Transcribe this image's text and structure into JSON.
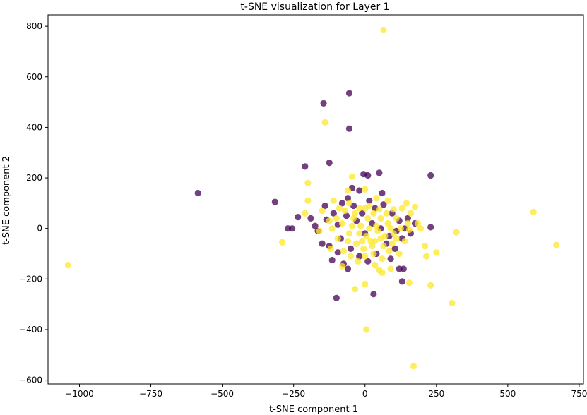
{
  "chart_data": {
    "type": "scatter",
    "title": "t-SNE visualization for Layer 1",
    "xlabel": "t-SNE component 1",
    "ylabel": "t-SNE component 2",
    "xlim": [
      -1110,
      765
    ],
    "ylim": [
      -615,
      845
    ],
    "xticks": [
      -1000,
      -750,
      -500,
      -250,
      0,
      250,
      500,
      750
    ],
    "xtick_labels": [
      "−1000",
      "−750",
      "−500",
      "−250",
      "0",
      "250",
      "500",
      "750"
    ],
    "yticks": [
      -600,
      -400,
      -200,
      0,
      200,
      400,
      600,
      800
    ],
    "ytick_labels": [
      "−600",
      "−400",
      "−200",
      "0",
      "200",
      "400",
      "600",
      "800"
    ],
    "grid": false,
    "legend": "none",
    "colors": {
      "class_0": "#440154",
      "class_1": "#fde725"
    },
    "series": [
      {
        "color": "#440154",
        "points": [
          [
            -585,
            140
          ],
          [
            -315,
            105
          ],
          [
            -270,
            0
          ],
          [
            -255,
            0
          ],
          [
            -235,
            45
          ],
          [
            -210,
            245
          ],
          [
            -145,
            495
          ],
          [
            -125,
            260
          ],
          [
            -55,
            535
          ],
          [
            -55,
            395
          ],
          [
            -5,
            215
          ],
          [
            10,
            210
          ],
          [
            50,
            220
          ],
          [
            60,
            140
          ],
          [
            230,
            210
          ],
          [
            230,
            5
          ],
          [
            -95,
            15
          ],
          [
            -80,
            100
          ],
          [
            -60,
            120
          ],
          [
            -40,
            90
          ],
          [
            -20,
            150
          ],
          [
            -10,
            60
          ],
          [
            15,
            110
          ],
          [
            35,
            80
          ],
          [
            65,
            95
          ],
          [
            95,
            60
          ],
          [
            120,
            30
          ],
          [
            140,
            0
          ],
          [
            130,
            -40
          ],
          [
            105,
            -80
          ],
          [
            90,
            -120
          ],
          [
            120,
            -160
          ],
          [
            135,
            -160
          ],
          [
            130,
            -210
          ],
          [
            30,
            -260
          ],
          [
            -100,
            -275
          ],
          [
            -75,
            -140
          ],
          [
            -60,
            -160
          ],
          [
            -115,
            -125
          ],
          [
            -150,
            -60
          ],
          [
            -175,
            10
          ],
          [
            -190,
            40
          ],
          [
            -165,
            -10
          ],
          [
            -135,
            35
          ],
          [
            -110,
            60
          ],
          [
            -85,
            -40
          ],
          [
            -50,
            -80
          ],
          [
            -20,
            -110
          ],
          [
            10,
            -130
          ],
          [
            40,
            -100
          ],
          [
            75,
            -60
          ],
          [
            110,
            -10
          ],
          [
            150,
            40
          ],
          [
            175,
            20
          ],
          [
            160,
            -20
          ],
          [
            -125,
            -70
          ],
          [
            -95,
            -95
          ],
          [
            -30,
            30
          ],
          [
            0,
            -20
          ],
          [
            25,
            20
          ],
          [
            55,
            0
          ],
          [
            85,
            -30
          ],
          [
            -65,
            50
          ],
          [
            -140,
            90
          ],
          [
            -45,
            160
          ]
        ]
      },
      {
        "color": "#fde725",
        "points": [
          [
            65,
            785
          ],
          [
            -140,
            420
          ],
          [
            -45,
            205
          ],
          [
            -200,
            180
          ],
          [
            -290,
            -55
          ],
          [
            -1040,
            -145
          ],
          [
            590,
            65
          ],
          [
            670,
            -65
          ],
          [
            320,
            -15
          ],
          [
            305,
            -295
          ],
          [
            250,
            -95
          ],
          [
            230,
            -225
          ],
          [
            215,
            -110
          ],
          [
            210,
            -70
          ],
          [
            195,
            0
          ],
          [
            185,
            20
          ],
          [
            175,
            85
          ],
          [
            155,
            -215
          ],
          [
            90,
            -160
          ],
          [
            60,
            -175
          ],
          [
            50,
            -165
          ],
          [
            35,
            -145
          ],
          [
            0,
            -220
          ],
          [
            5,
            -400
          ],
          [
            170,
            -545
          ],
          [
            -35,
            -240
          ],
          [
            -80,
            -150
          ],
          [
            -120,
            -80
          ],
          [
            -160,
            -10
          ],
          [
            -200,
            110
          ],
          [
            -210,
            60
          ],
          [
            -150,
            70
          ],
          [
            -110,
            110
          ],
          [
            -60,
            150
          ],
          [
            0,
            155
          ],
          [
            40,
            120
          ],
          [
            80,
            110
          ],
          [
            100,
            75
          ],
          [
            130,
            80
          ],
          [
            145,
            100
          ],
          [
            160,
            60
          ],
          [
            155,
            -5
          ],
          [
            140,
            -50
          ],
          [
            120,
            -100
          ],
          [
            95,
            -60
          ],
          [
            70,
            -30
          ],
          [
            45,
            -10
          ],
          [
            20,
            -50
          ],
          [
            -5,
            -80
          ],
          [
            -30,
            -60
          ],
          [
            -55,
            -20
          ],
          [
            -80,
            20
          ],
          [
            -100,
            40
          ],
          [
            -70,
            70
          ],
          [
            -40,
            40
          ],
          [
            -15,
            10
          ],
          [
            10,
            40
          ],
          [
            30,
            60
          ],
          [
            55,
            40
          ],
          [
            80,
            20
          ],
          [
            100,
            -20
          ],
          [
            85,
            -90
          ],
          [
            60,
            -120
          ],
          [
            30,
            -100
          ],
          [
            0,
            -110
          ],
          [
            -25,
            -130
          ],
          [
            -50,
            -110
          ],
          [
            -75,
            -90
          ],
          [
            -95,
            -40
          ],
          [
            -115,
            0
          ],
          [
            -90,
            80
          ],
          [
            -55,
            100
          ],
          [
            -20,
            80
          ],
          [
            15,
            90
          ],
          [
            50,
            75
          ],
          [
            75,
            60
          ],
          [
            110,
            40
          ],
          [
            125,
            0
          ],
          [
            110,
            -40
          ],
          [
            65,
            -70
          ],
          [
            35,
            -50
          ],
          [
            5,
            -30
          ],
          [
            -20,
            -20
          ],
          [
            -45,
            10
          ],
          [
            -60,
            -50
          ],
          [
            15,
            0
          ],
          [
            40,
            10
          ],
          [
            -10,
            -50
          ],
          [
            25,
            -70
          ],
          [
            55,
            -40
          ],
          [
            90,
            0
          ],
          [
            -35,
            60
          ],
          [
            0,
            80
          ],
          [
            -125,
            30
          ],
          [
            150,
            20
          ]
        ]
      }
    ]
  }
}
